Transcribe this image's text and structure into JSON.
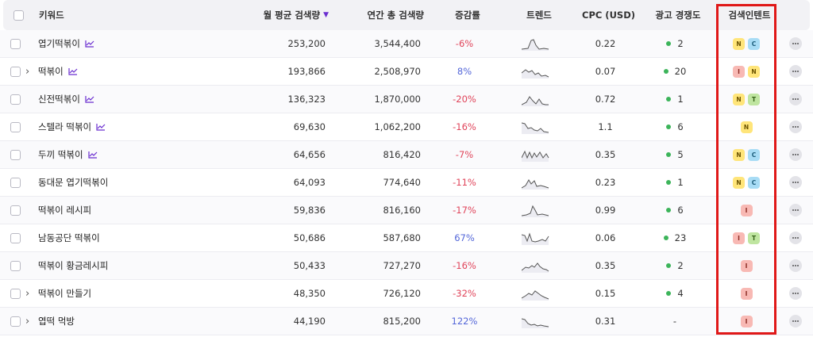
{
  "header": {
    "keyword": "키워드",
    "monthly": "월 평균 검색량",
    "sort_icon": "▼",
    "yearly": "연간 총 검색량",
    "growth": "증감률",
    "trend": "트렌드",
    "cpc": "CPC (USD)",
    "competition": "광고 경쟁도",
    "intent": "검색인텐트"
  },
  "rows": [
    {
      "keyword": "엽기떡볶이",
      "monthly": "253,200",
      "yearly": "3,544,400",
      "growth": "-6%",
      "cpc": "0.22",
      "competition": "2",
      "intents": [
        "N",
        "C"
      ]
    },
    {
      "keyword": "떡볶이",
      "monthly": "193,866",
      "yearly": "2,508,970",
      "growth": "8%",
      "cpc": "0.07",
      "competition": "20",
      "intents": [
        "I",
        "N"
      ]
    },
    {
      "keyword": "신전떡볶이",
      "monthly": "136,323",
      "yearly": "1,870,000",
      "growth": "-20%",
      "cpc": "0.72",
      "competition": "1",
      "intents": [
        "N",
        "T"
      ]
    },
    {
      "keyword": "스텔라 떡볶이",
      "monthly": "69,630",
      "yearly": "1,062,200",
      "growth": "-16%",
      "cpc": "1.1",
      "competition": "6",
      "intents": [
        "N"
      ]
    },
    {
      "keyword": "두끼 떡볶이",
      "monthly": "64,656",
      "yearly": "816,420",
      "growth": "-7%",
      "cpc": "0.35",
      "competition": "5",
      "intents": [
        "N",
        "C"
      ]
    },
    {
      "keyword": "동대문 엽기떡볶이",
      "monthly": "64,093",
      "yearly": "774,640",
      "growth": "-11%",
      "cpc": "0.23",
      "competition": "1",
      "intents": [
        "N",
        "C"
      ]
    },
    {
      "keyword": "떡볶이 레시피",
      "monthly": "59,836",
      "yearly": "816,160",
      "growth": "-17%",
      "cpc": "0.99",
      "competition": "6",
      "intents": [
        "I"
      ]
    },
    {
      "keyword": "남동공단 떡볶이",
      "monthly": "50,686",
      "yearly": "587,680",
      "growth": "67%",
      "cpc": "0.06",
      "competition": "23",
      "intents": [
        "I",
        "T"
      ]
    },
    {
      "keyword": "떡볶이 황금레시피",
      "monthly": "50,433",
      "yearly": "727,270",
      "growth": "-16%",
      "cpc": "0.35",
      "competition": "2",
      "intents": [
        "I"
      ]
    },
    {
      "keyword": "떡볶이 만들기",
      "monthly": "48,350",
      "yearly": "726,120",
      "growth": "-32%",
      "cpc": "0.15",
      "competition": "4",
      "intents": [
        "I"
      ]
    },
    {
      "keyword": "엽떡 먹방",
      "monthly": "44,190",
      "yearly": "815,200",
      "growth": "122%",
      "cpc": "0.31",
      "competition": "-",
      "intents": [
        "I"
      ]
    }
  ],
  "colors": {
    "negative": "#e0445a",
    "positive": "#5467d9",
    "accent": "#6b2fd0",
    "highlight": "#e01818",
    "competition_dot": "#3cb45a"
  }
}
